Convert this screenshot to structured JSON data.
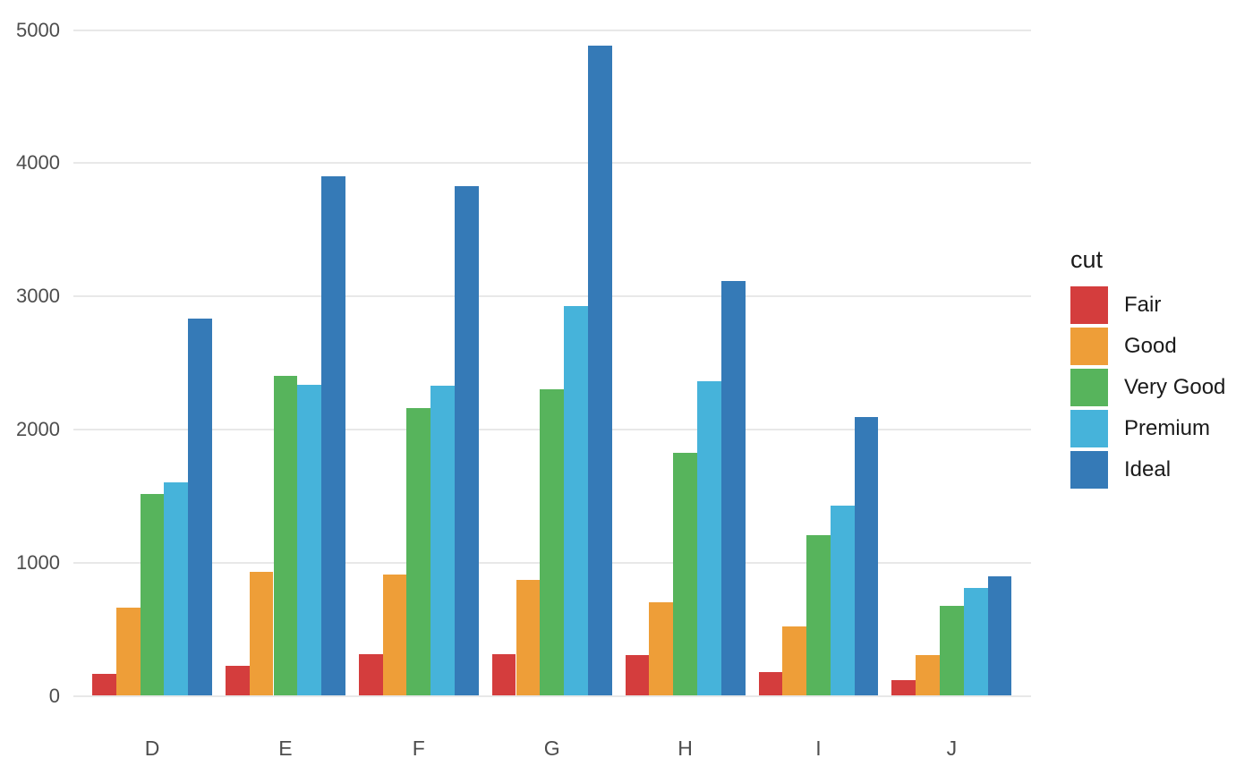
{
  "chart_data": {
    "type": "bar",
    "subtype": "grouped-vertical",
    "title": "",
    "xlabel": "",
    "ylabel": "",
    "legend_title": "cut",
    "legend_position": "right",
    "grid": "horizontal-major-only",
    "categories": [
      "D",
      "E",
      "F",
      "G",
      "H",
      "I",
      "J"
    ],
    "series": [
      {
        "name": "Fair",
        "color": "#d43d3d",
        "values": [
          163,
          224,
          312,
          314,
          303,
          175,
          119
        ]
      },
      {
        "name": "Good",
        "color": "#ee9e38",
        "values": [
          662,
          933,
          909,
          871,
          702,
          522,
          307
        ]
      },
      {
        "name": "Very Good",
        "color": "#57b45c",
        "values": [
          1513,
          2400,
          2164,
          2299,
          1824,
          1204,
          678
        ]
      },
      {
        "name": "Premium",
        "color": "#46b3da",
        "values": [
          1603,
          2337,
          2331,
          2924,
          2360,
          1428,
          808
        ]
      },
      {
        "name": "Ideal",
        "color": "#357ab7",
        "values": [
          2834,
          3903,
          3826,
          4884,
          3115,
          2093,
          896
        ]
      }
    ],
    "y_ticks": [
      0,
      1000,
      2000,
      3000,
      4000,
      5000
    ],
    "ylim": [
      0,
      5000
    ],
    "colors": {
      "background": "#ffffff",
      "gridline": "#e8e8e8",
      "axis_tick_text": "#4d4d4d",
      "legend_text": "#1a1a1a"
    }
  }
}
